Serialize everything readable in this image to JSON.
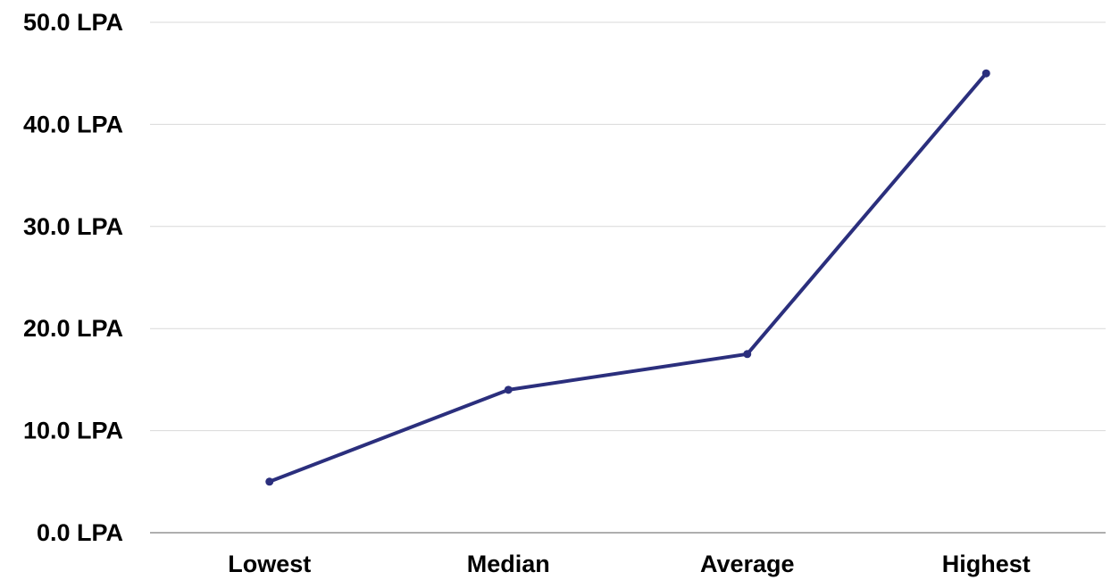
{
  "chart_data": {
    "type": "line",
    "categories": [
      "Lowest",
      "Median",
      "Average",
      "Highest"
    ],
    "series": [
      {
        "values": [
          5.0,
          14.0,
          17.5,
          45.0
        ],
        "color": "#2b2f7d"
      }
    ],
    "y_ticks": [
      "0.0 LPA",
      "10.0 LPA",
      "20.0 LPA",
      "30.0 LPA",
      "40.0 LPA",
      "50.0 LPA"
    ],
    "ylim": [
      0,
      50
    ],
    "y_step": 10,
    "grid": "horizontal",
    "markers": true,
    "legend": "none",
    "gridline_color": "#d9d9d9",
    "axis_color": "#7f7f7f"
  }
}
